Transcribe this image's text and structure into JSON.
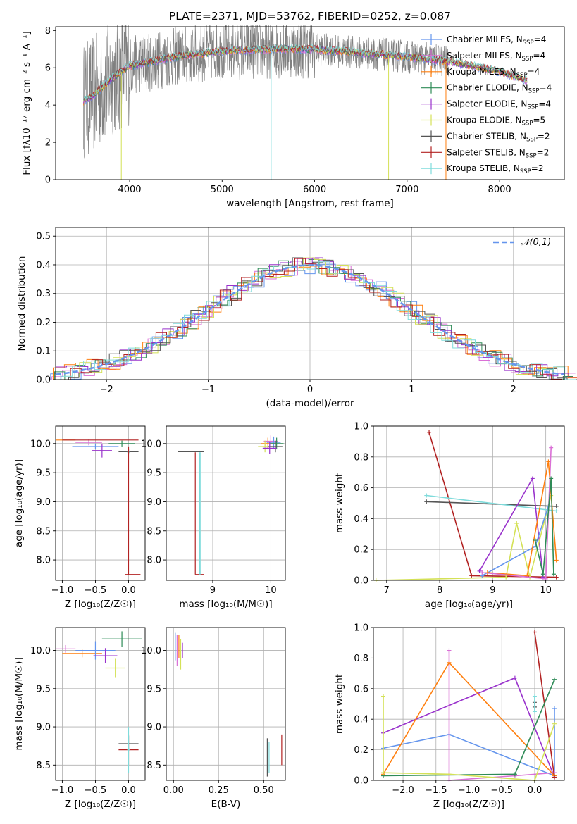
{
  "chart_data": [
    {
      "type": "line",
      "title": "PLATE=2371, MJD=53762, FIBERID=0252, z=0.087",
      "xlabel": "wavelength [Angstrom, rest frame]",
      "ylabel": "Flux [fλ10⁻¹⁷ erg cm⁻² s⁻¹ A⁻¹]",
      "xlim": [
        3200,
        8700
      ],
      "ylim": [
        0,
        8.2
      ],
      "xticks": [
        4000,
        5000,
        6000,
        7000,
        8000
      ],
      "yticks": [
        0,
        2,
        4,
        6,
        8
      ],
      "legend_position": "right",
      "series": [
        {
          "name": "Chabrier MILES, N",
          "sub": "SSP",
          "tail": "=4",
          "color": "#6495ed"
        },
        {
          "name": "Salpeter MILES, N",
          "sub": "SSP",
          "tail": "=4",
          "color": "#da70d6"
        },
        {
          "name": "Kroupa MILES, N",
          "sub": "SSP",
          "tail": "=4",
          "color": "#ff7f0e"
        },
        {
          "name": "Chabrier ELODIE, N",
          "sub": "SSP",
          "tail": "=4",
          "color": "#2e8b57"
        },
        {
          "name": "Salpeter ELODIE, N",
          "sub": "SSP",
          "tail": "=4",
          "color": "#9932cc"
        },
        {
          "name": "Kroupa ELODIE, N",
          "sub": "SSP",
          "tail": "=5",
          "color": "#d4e157"
        },
        {
          "name": "Chabrier STELIB, N",
          "sub": "SSP",
          "tail": "=2",
          "color": "#555555"
        },
        {
          "name": "Salpeter STELIB, N",
          "sub": "SSP",
          "tail": "=2",
          "color": "#b22222"
        },
        {
          "name": "Kroupa STELIB, N",
          "sub": "SSP",
          "tail": "=2",
          "color": "#7fdbdb"
        }
      ],
      "continuum": {
        "x": [
          3500,
          3600,
          3800,
          4000,
          4500,
          5000,
          5500,
          6000,
          6500,
          7000,
          7500,
          8000,
          8300
        ],
        "y": [
          4.2,
          4.5,
          5.4,
          6.1,
          6.6,
          6.9,
          7.0,
          7.0,
          6.8,
          6.6,
          6.3,
          5.8,
          5.3
        ]
      }
    },
    {
      "type": "line",
      "xlabel": "(data-model)/error",
      "ylabel": "Normed distribution",
      "xlim": [
        -2.5,
        2.5
      ],
      "ylim": [
        0,
        0.53
      ],
      "xticks": [
        -2,
        -1,
        0,
        1,
        2
      ],
      "yticks": [
        0.0,
        0.1,
        0.2,
        0.3,
        0.4,
        0.5
      ],
      "legend": "𝒩(0,1)",
      "gaussian_color": "#6495ed"
    },
    {
      "type": "scatter",
      "xlabel": "Z [log₁₀(Z/Z☉)]",
      "ylabel": "age  [log₁₀(age/yr)]",
      "xlim": [
        -1.1,
        0.25
      ],
      "ylim": [
        7.65,
        10.3
      ],
      "xticks": [
        -1.0,
        -0.5,
        0.0
      ],
      "yticks": [
        8.0,
        8.5,
        9.0,
        9.5,
        10.0
      ]
    },
    {
      "type": "scatter",
      "xlabel": "mass [log₁₀(M/M☉)]",
      "ylabel": "",
      "xlim": [
        8.2,
        10.25
      ],
      "ylim": [
        7.65,
        10.3
      ],
      "xticks": [
        9,
        10
      ],
      "yticks": [
        8.0,
        8.5,
        9.0,
        9.5,
        10.0
      ]
    },
    {
      "type": "line",
      "xlabel": "age  [log₁₀(age/yr)]",
      "ylabel": "mass weight",
      "xlim": [
        6.75,
        10.35
      ],
      "ylim": [
        0,
        1.0
      ],
      "xticks": [
        7,
        8,
        9,
        10
      ],
      "yticks": [
        0.0,
        0.2,
        0.4,
        0.6,
        0.8,
        1.0
      ]
    },
    {
      "type": "scatter",
      "xlabel": "Z [log₁₀(Z/Z☉)]",
      "ylabel": "mass [log₁₀(M/M☉)]",
      "xlim": [
        -1.1,
        0.25
      ],
      "ylim": [
        8.3,
        10.3
      ],
      "xticks": [
        -1.0,
        -0.5,
        0.0
      ],
      "yticks": [
        8.5,
        9.0,
        9.5,
        10.0
      ]
    },
    {
      "type": "scatter",
      "xlabel": "E(B-V)",
      "ylabel": "",
      "xlim": [
        -0.04,
        0.62
      ],
      "ylim": [
        8.3,
        10.3
      ],
      "xticks": [
        0.0,
        0.25,
        0.5
      ],
      "yticks": [
        8.5,
        9.0,
        9.5,
        10.0
      ]
    },
    {
      "type": "line",
      "xlabel": "Z [log₁₀(Z/Z☉)]",
      "ylabel": "mass weight",
      "xlim": [
        -2.45,
        0.45
      ],
      "ylim": [
        0,
        1.0
      ],
      "xticks": [
        -2.0,
        -1.5,
        -1.0,
        -0.5,
        0.0
      ],
      "yticks": [
        0.0,
        0.2,
        0.4,
        0.6,
        0.8,
        1.0
      ]
    }
  ]
}
